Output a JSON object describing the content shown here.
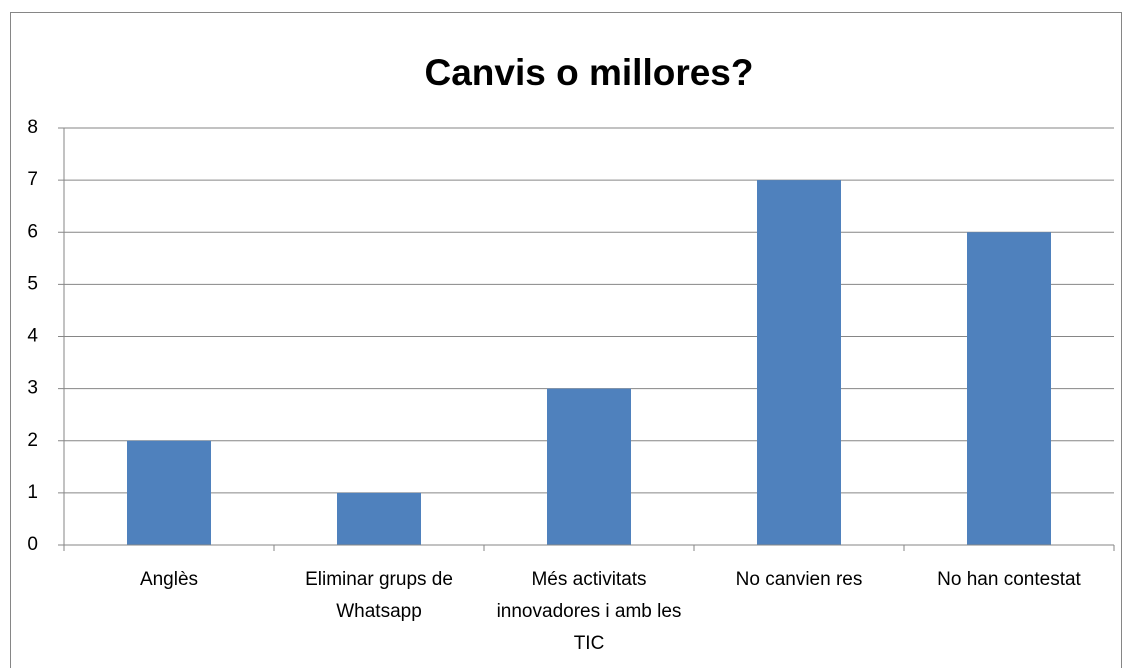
{
  "chart_data": {
    "type": "bar",
    "title": "Canvis o millores?",
    "categories": [
      "Anglès",
      "Eliminar grups de Whatsapp",
      "Més activitats innovadores i amb les TIC",
      "No canvien res",
      "No han contestat"
    ],
    "values": [
      2,
      1,
      3,
      7,
      6
    ],
    "color": "#4f81bd",
    "ylim": [
      0,
      8
    ],
    "yticks": [
      0,
      1,
      2,
      3,
      4,
      5,
      6,
      7,
      8
    ],
    "grid": true
  }
}
